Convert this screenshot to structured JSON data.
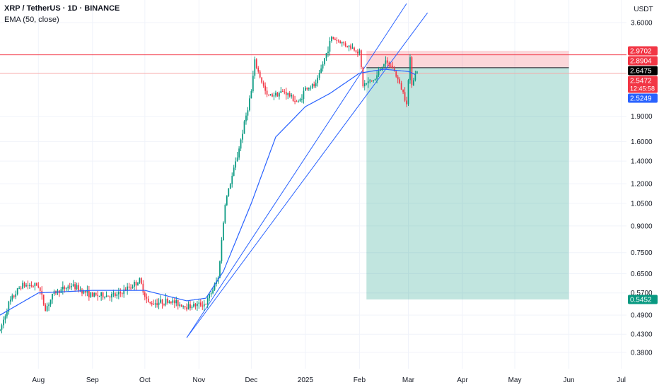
{
  "header": {
    "title": "XRP / TetherUS · 1D · BINANCE",
    "indicator": "EMA (50, close)"
  },
  "chart_data": {
    "type": "candlestick",
    "currency": "USDT",
    "scale": "log",
    "ylim": [
      0.34,
      4.2
    ],
    "x_months": [
      {
        "label": "Aug",
        "date": "2024-08-01"
      },
      {
        "label": "Sep",
        "date": "2024-09-01"
      },
      {
        "label": "Oct",
        "date": "2024-10-01"
      },
      {
        "label": "Nov",
        "date": "2024-11-01"
      },
      {
        "label": "Dec",
        "date": "2024-12-01"
      },
      {
        "label": "2025",
        "date": "2025-01-01"
      },
      {
        "label": "Feb",
        "date": "2025-02-01"
      },
      {
        "label": "Mar",
        "date": "2025-03-01"
      },
      {
        "label": "Apr",
        "date": "2025-04-01"
      },
      {
        "label": "May",
        "date": "2025-05-01"
      },
      {
        "label": "Jun",
        "date": "2025-06-01"
      },
      {
        "label": "Jul",
        "date": "2025-07-01"
      }
    ],
    "x_range": [
      "2024-07-10",
      "2025-07-04"
    ],
    "y_ticks": [
      "3.6000",
      "1.9000",
      "1.6000",
      "1.4000",
      "1.2000",
      "1.0500",
      "0.9000",
      "0.7500",
      "0.6500",
      "0.5700",
      "0.4900",
      "0.4300",
      "0.3800"
    ],
    "price_labels": [
      {
        "text": "2.9702",
        "value": 2.9702,
        "color": "#f23645",
        "text_color": "#ffffff"
      },
      {
        "text": "2.8904",
        "value": 2.8904,
        "color": "#f23645",
        "text_color": "#ffffff"
      },
      {
        "text": "2.6475",
        "value": 2.6475,
        "color": "#000000",
        "text_color": "#ffffff"
      },
      {
        "text": "2.5472",
        "value": 2.5472,
        "color": "#f23645",
        "text_color": "#ffffff",
        "subtext": "12:45:58"
      },
      {
        "text": "2.5249",
        "value": 2.5249,
        "color": "#2962ff",
        "text_color": "#ffffff"
      },
      {
        "text": "0.5452",
        "value": 0.5452,
        "color": "#089981",
        "text_color": "#ffffff"
      }
    ],
    "position": {
      "type": "short",
      "start": "2025-02-05",
      "end": "2025-06-01",
      "entry": 2.6475,
      "stop": 2.9702,
      "target": 0.5452
    },
    "trendlines": [
      {
        "from": {
          "date": "2024-10-25",
          "price": 0.42
        },
        "to": {
          "date": "2025-02-28",
          "price": 4.1
        }
      },
      {
        "from": {
          "date": "2024-10-25",
          "price": 0.42
        },
        "to": {
          "date": "2025-03-12",
          "price": 3.85
        }
      }
    ],
    "horizontal_lines": [
      {
        "price": 2.8904,
        "color": "#f23645"
      },
      {
        "price": 2.5472,
        "color": "#f7a9a9"
      }
    ],
    "ema_anchors": [
      [
        "2024-07-10",
        0.49
      ],
      [
        "2024-08-01",
        0.57
      ],
      [
        "2024-09-01",
        0.58
      ],
      [
        "2024-10-01",
        0.58
      ],
      [
        "2024-10-25",
        0.54
      ],
      [
        "2024-11-05",
        0.55
      ],
      [
        "2024-11-15",
        0.66
      ],
      [
        "2024-12-01",
        1.05
      ],
      [
        "2024-12-15",
        1.65
      ],
      [
        "2025-01-01",
        2.03
      ],
      [
        "2025-01-15",
        2.22
      ],
      [
        "2025-02-01",
        2.55
      ],
      [
        "2025-02-15",
        2.62
      ],
      [
        "2025-03-01",
        2.58
      ],
      [
        "2025-03-05",
        2.5249
      ]
    ],
    "price_anchors": [
      [
        "2024-07-10",
        0.44
      ],
      [
        "2024-07-15",
        0.53
      ],
      [
        "2024-07-22",
        0.6
      ],
      [
        "2024-08-01",
        0.6
      ],
      [
        "2024-08-05",
        0.51
      ],
      [
        "2024-08-10",
        0.57
      ],
      [
        "2024-08-20",
        0.6
      ],
      [
        "2024-09-01",
        0.56
      ],
      [
        "2024-09-15",
        0.56
      ],
      [
        "2024-09-28",
        0.62
      ],
      [
        "2024-10-03",
        0.53
      ],
      [
        "2024-10-15",
        0.54
      ],
      [
        "2024-10-25",
        0.52
      ],
      [
        "2024-11-05",
        0.53
      ],
      [
        "2024-11-12",
        0.63
      ],
      [
        "2024-11-16",
        1.05
      ],
      [
        "2024-11-23",
        1.45
      ],
      [
        "2024-12-01",
        2.25
      ],
      [
        "2024-12-03",
        2.75
      ],
      [
        "2024-12-10",
        2.18
      ],
      [
        "2024-12-20",
        2.25
      ],
      [
        "2024-12-28",
        2.08
      ],
      [
        "2025-01-01",
        2.3
      ],
      [
        "2025-01-07",
        2.35
      ],
      [
        "2025-01-16",
        3.25
      ],
      [
        "2025-01-24",
        3.1
      ],
      [
        "2025-02-01",
        2.95
      ],
      [
        "2025-02-03",
        2.35
      ],
      [
        "2025-02-10",
        2.45
      ],
      [
        "2025-02-15",
        2.75
      ],
      [
        "2025-02-20",
        2.65
      ],
      [
        "2025-02-25",
        2.3
      ],
      [
        "2025-02-28",
        2.1
      ],
      [
        "2025-03-02",
        2.8
      ],
      [
        "2025-03-03",
        2.4
      ],
      [
        "2025-03-06",
        2.6
      ]
    ]
  }
}
